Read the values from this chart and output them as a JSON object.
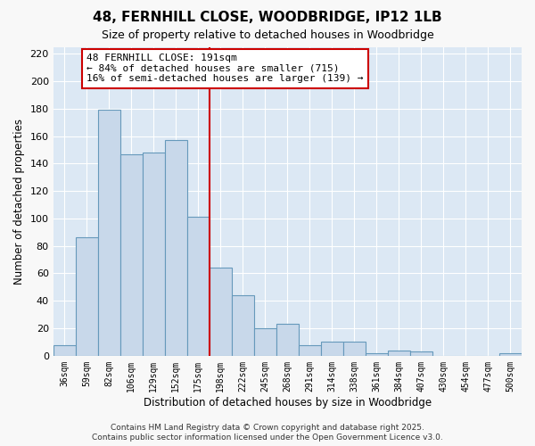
{
  "title": "48, FERNHILL CLOSE, WOODBRIDGE, IP12 1LB",
  "subtitle": "Size of property relative to detached houses in Woodbridge",
  "xlabel": "Distribution of detached houses by size in Woodbridge",
  "ylabel": "Number of detached properties",
  "categories": [
    "36sqm",
    "59sqm",
    "82sqm",
    "106sqm",
    "129sqm",
    "152sqm",
    "175sqm",
    "198sqm",
    "222sqm",
    "245sqm",
    "268sqm",
    "291sqm",
    "314sqm",
    "338sqm",
    "361sqm",
    "384sqm",
    "407sqm",
    "430sqm",
    "454sqm",
    "477sqm",
    "500sqm"
  ],
  "bar_values": [
    8,
    86,
    179,
    147,
    148,
    157,
    101,
    64,
    44,
    20,
    23,
    8,
    10,
    10,
    2,
    4,
    3,
    0,
    0,
    0,
    2
  ],
  "bar_color": "#c8d8ea",
  "bar_edge_color": "#6699bb",
  "vline_index": 7,
  "vline_color": "#cc0000",
  "annotation_text": "48 FERNHILL CLOSE: 191sqm\n← 84% of detached houses are smaller (715)\n16% of semi-detached houses are larger (139) →",
  "annotation_box_color": "#ffffff",
  "annotation_box_edge_color": "#cc0000",
  "ylim": [
    0,
    225
  ],
  "yticks": [
    0,
    20,
    40,
    60,
    80,
    100,
    120,
    140,
    160,
    180,
    200,
    220
  ],
  "fig_bg_color": "#f8f8f8",
  "plot_bg_color": "#dce8f4",
  "grid_color": "#ffffff",
  "footer_line1": "Contains HM Land Registry data © Crown copyright and database right 2025.",
  "footer_line2": "Contains public sector information licensed under the Open Government Licence v3.0."
}
